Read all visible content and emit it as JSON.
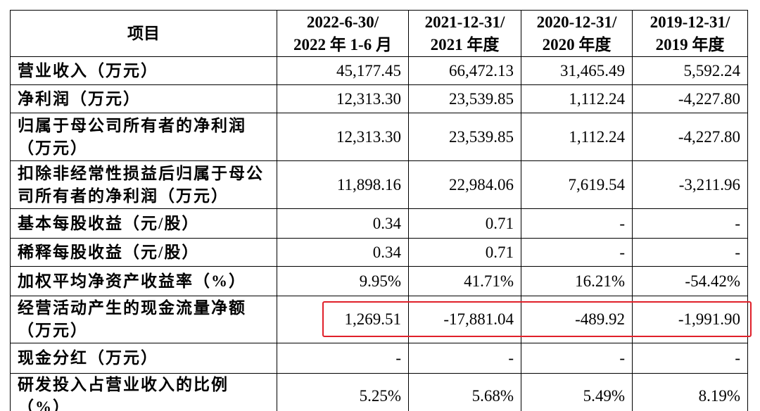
{
  "table": {
    "header": [
      [
        "项目"
      ],
      [
        "2022-6-30/",
        "2022 年 1-6 月"
      ],
      [
        "2021-12-31/",
        "2021 年度"
      ],
      [
        "2020-12-31/",
        "2020 年度"
      ],
      [
        "2019-12-31/",
        "2019 年度"
      ]
    ],
    "rows": [
      [
        "营业收入（万元）",
        "45,177.45",
        "66,472.13",
        "31,465.49",
        "5,592.24"
      ],
      [
        "净利润（万元）",
        "12,313.30",
        "23,539.85",
        "1,112.24",
        "-4,227.80"
      ],
      [
        "归属于母公司所有者的净利润（万元）",
        "12,313.30",
        "23,539.85",
        "1,112.24",
        "-4,227.80"
      ],
      [
        "扣除非经常性损益后归属于母公司所有者的净利润（万元）",
        "11,898.16",
        "22,984.06",
        "7,619.54",
        "-3,211.96"
      ],
      [
        "基本每股收益（元/股）",
        "0.34",
        "0.71",
        "-",
        "-"
      ],
      [
        "稀释每股收益（元/股）",
        "0.34",
        "0.71",
        "-",
        "-"
      ],
      [
        "加权平均净资产收益率（%）",
        "9.95%",
        "41.71%",
        "16.21%",
        "-54.42%"
      ],
      [
        "经营活动产生的现金流量净额（万元）",
        "1,269.51",
        "-17,881.04",
        "-489.92",
        "-1,991.90"
      ],
      [
        "现金分红（万元）",
        "-",
        "-",
        "-",
        "-"
      ],
      [
        "研发投入占营业收入的比例（%）",
        "5.25%",
        "5.68%",
        "5.49%",
        "8.19%"
      ]
    ]
  }
}
